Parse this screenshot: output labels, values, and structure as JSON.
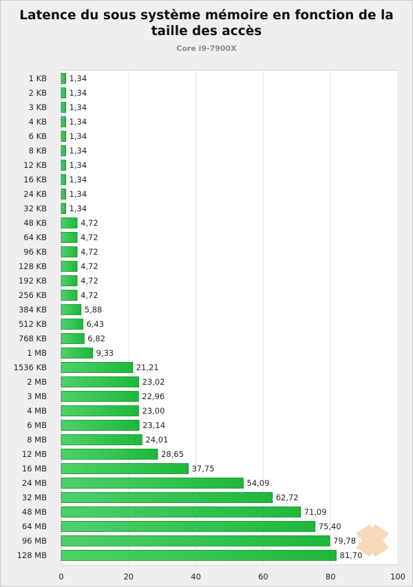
{
  "chart_data": {
    "type": "bar",
    "orientation": "horizontal",
    "title": "Latence du sous système mémoire en fonction de la taille des accès",
    "title_lines": [
      "Latence du sous système mémoire en fonction de la",
      "taille des accès"
    ],
    "subtitle": "Core i9-7900X",
    "categories": [
      "1 KB",
      "2 KB",
      "3 KB",
      "4 KB",
      "6 KB",
      "8 KB",
      "12 KB",
      "16 KB",
      "24 KB",
      "32 KB",
      "48 KB",
      "64 KB",
      "96 KB",
      "128 KB",
      "192 KB",
      "256 KB",
      "384 KB",
      "512 KB",
      "768 KB",
      "1 MB",
      "1536 KB",
      "2 MB",
      "3 MB",
      "4 MB",
      "6 MB",
      "8 MB",
      "12 MB",
      "16 MB",
      "24 MB",
      "32 MB",
      "48 MB",
      "64 MB",
      "96 MB",
      "128 MB"
    ],
    "values": [
      1.34,
      1.34,
      1.34,
      1.34,
      1.34,
      1.34,
      1.34,
      1.34,
      1.34,
      1.34,
      4.72,
      4.72,
      4.72,
      4.72,
      4.72,
      4.72,
      5.88,
      6.43,
      6.82,
      9.33,
      21.21,
      23.02,
      22.96,
      23.0,
      23.14,
      24.01,
      28.65,
      37.75,
      54.09,
      62.72,
      71.09,
      75.4,
      79.78,
      81.7
    ],
    "value_labels": [
      "1,34",
      "1,34",
      "1,34",
      "1,34",
      "1,34",
      "1,34",
      "1,34",
      "1,34",
      "1,34",
      "1,34",
      "4,72",
      "4,72",
      "4,72",
      "4,72",
      "4,72",
      "4,72",
      "5,88",
      "6,43",
      "6,82",
      "9,33",
      "21,21",
      "23,02",
      "22,96",
      "23,00",
      "23,14",
      "24,01",
      "28,65",
      "37,75",
      "54,09",
      "62,72",
      "71,09",
      "75,40",
      "79,78",
      "81,70"
    ],
    "xlim": [
      0,
      100
    ],
    "xticks": [
      0,
      20,
      40,
      60,
      80,
      100
    ],
    "xlabel": "",
    "ylabel": "",
    "grid": true,
    "bar_color": "#1db83a",
    "bar_color_light": "#4fd16a",
    "bar_border": "#118a26",
    "watermark_color": "#f6d9b8"
  }
}
